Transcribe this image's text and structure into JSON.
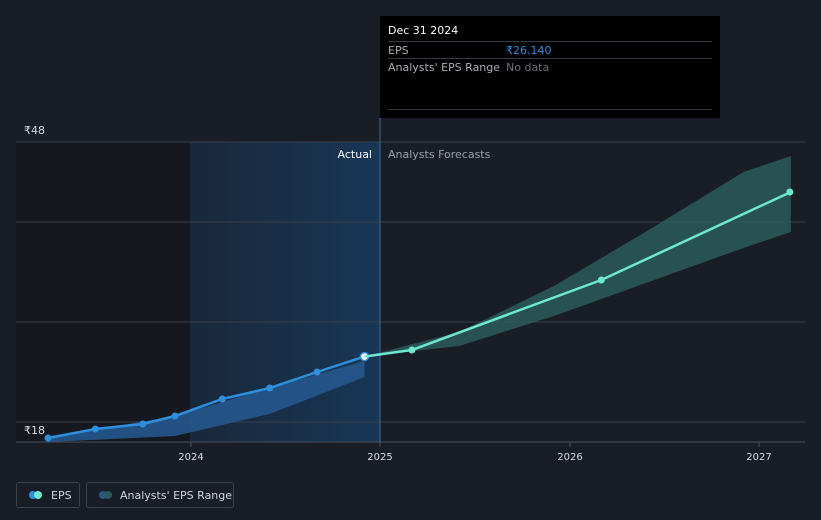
{
  "colors": {
    "background": "#181d26",
    "eps_actual": "#2d8fde",
    "eps_forecast": "#6ee8d1",
    "range_actual": "#25568d",
    "range_forecast": "#2c5a5c",
    "grid": "#3a404a",
    "tooltip_value": "#2d8fde",
    "tooltip_nodata": "#6b7079"
  },
  "tooltip": {
    "date": "Dec 31 2024",
    "eps_label": "EPS",
    "eps_value": "₹26.140",
    "range_label": "Analysts' EPS Range",
    "range_value": "No data"
  },
  "section_labels": {
    "actual": "Actual",
    "forecast": "Analysts Forecasts"
  },
  "legend": [
    {
      "label": "EPS",
      "icon": "eps-legend-icon"
    },
    {
      "label": "Analysts' EPS Range",
      "icon": "range-legend-icon"
    }
  ],
  "chart_data": {
    "type": "line",
    "y_axis": {
      "min": 18,
      "max": 48,
      "tick_labels": [
        "₹48",
        "₹18"
      ]
    },
    "x_axis": {
      "min": 2023.3,
      "max": 2027.25,
      "tick_labels": [
        "2024",
        "2025",
        "2026",
        "2027"
      ],
      "ticks": [
        2024,
        2025,
        2026,
        2027
      ]
    },
    "grid": true,
    "legend_position": "bottom-left",
    "highlight_x": 2025.0,
    "series": [
      {
        "name": "EPS",
        "kind": "actual",
        "points": [
          {
            "x": 2023.33,
            "y": 18.0
          },
          {
            "x": 2023.58,
            "y": 18.9
          },
          {
            "x": 2023.83,
            "y": 19.4
          },
          {
            "x": 2024.0,
            "y": 20.2
          },
          {
            "x": 2024.25,
            "y": 21.9
          },
          {
            "x": 2024.5,
            "y": 23.0
          },
          {
            "x": 2024.75,
            "y": 24.6
          },
          {
            "x": 2025.0,
            "y": 26.14
          }
        ]
      },
      {
        "name": "EPS",
        "kind": "forecast",
        "points": [
          {
            "x": 2025.0,
            "y": 26.14
          },
          {
            "x": 2025.25,
            "y": 26.8
          },
          {
            "x": 2026.25,
            "y": 33.8
          },
          {
            "x": 2027.25,
            "y": 42.6
          }
        ]
      }
    ],
    "range_actual": [
      {
        "x": 2023.33,
        "low": 17.6,
        "high": 18.0
      },
      {
        "x": 2024.0,
        "low": 18.2,
        "high": 20.2
      },
      {
        "x": 2024.5,
        "low": 20.4,
        "high": 23.0
      },
      {
        "x": 2025.0,
        "low": 24.1,
        "high": 25.7
      }
    ],
    "range_forecast": [
      {
        "x": 2025.0,
        "low": 26.14,
        "high": 26.14
      },
      {
        "x": 2025.5,
        "low": 27.2,
        "high": 28.6
      },
      {
        "x": 2026.0,
        "low": 30.2,
        "high": 33.2
      },
      {
        "x": 2026.5,
        "low": 33.6,
        "high": 38.8
      },
      {
        "x": 2027.0,
        "low": 37.0,
        "high": 44.6
      },
      {
        "x": 2027.25,
        "low": 38.6,
        "high": 46.2
      }
    ]
  }
}
